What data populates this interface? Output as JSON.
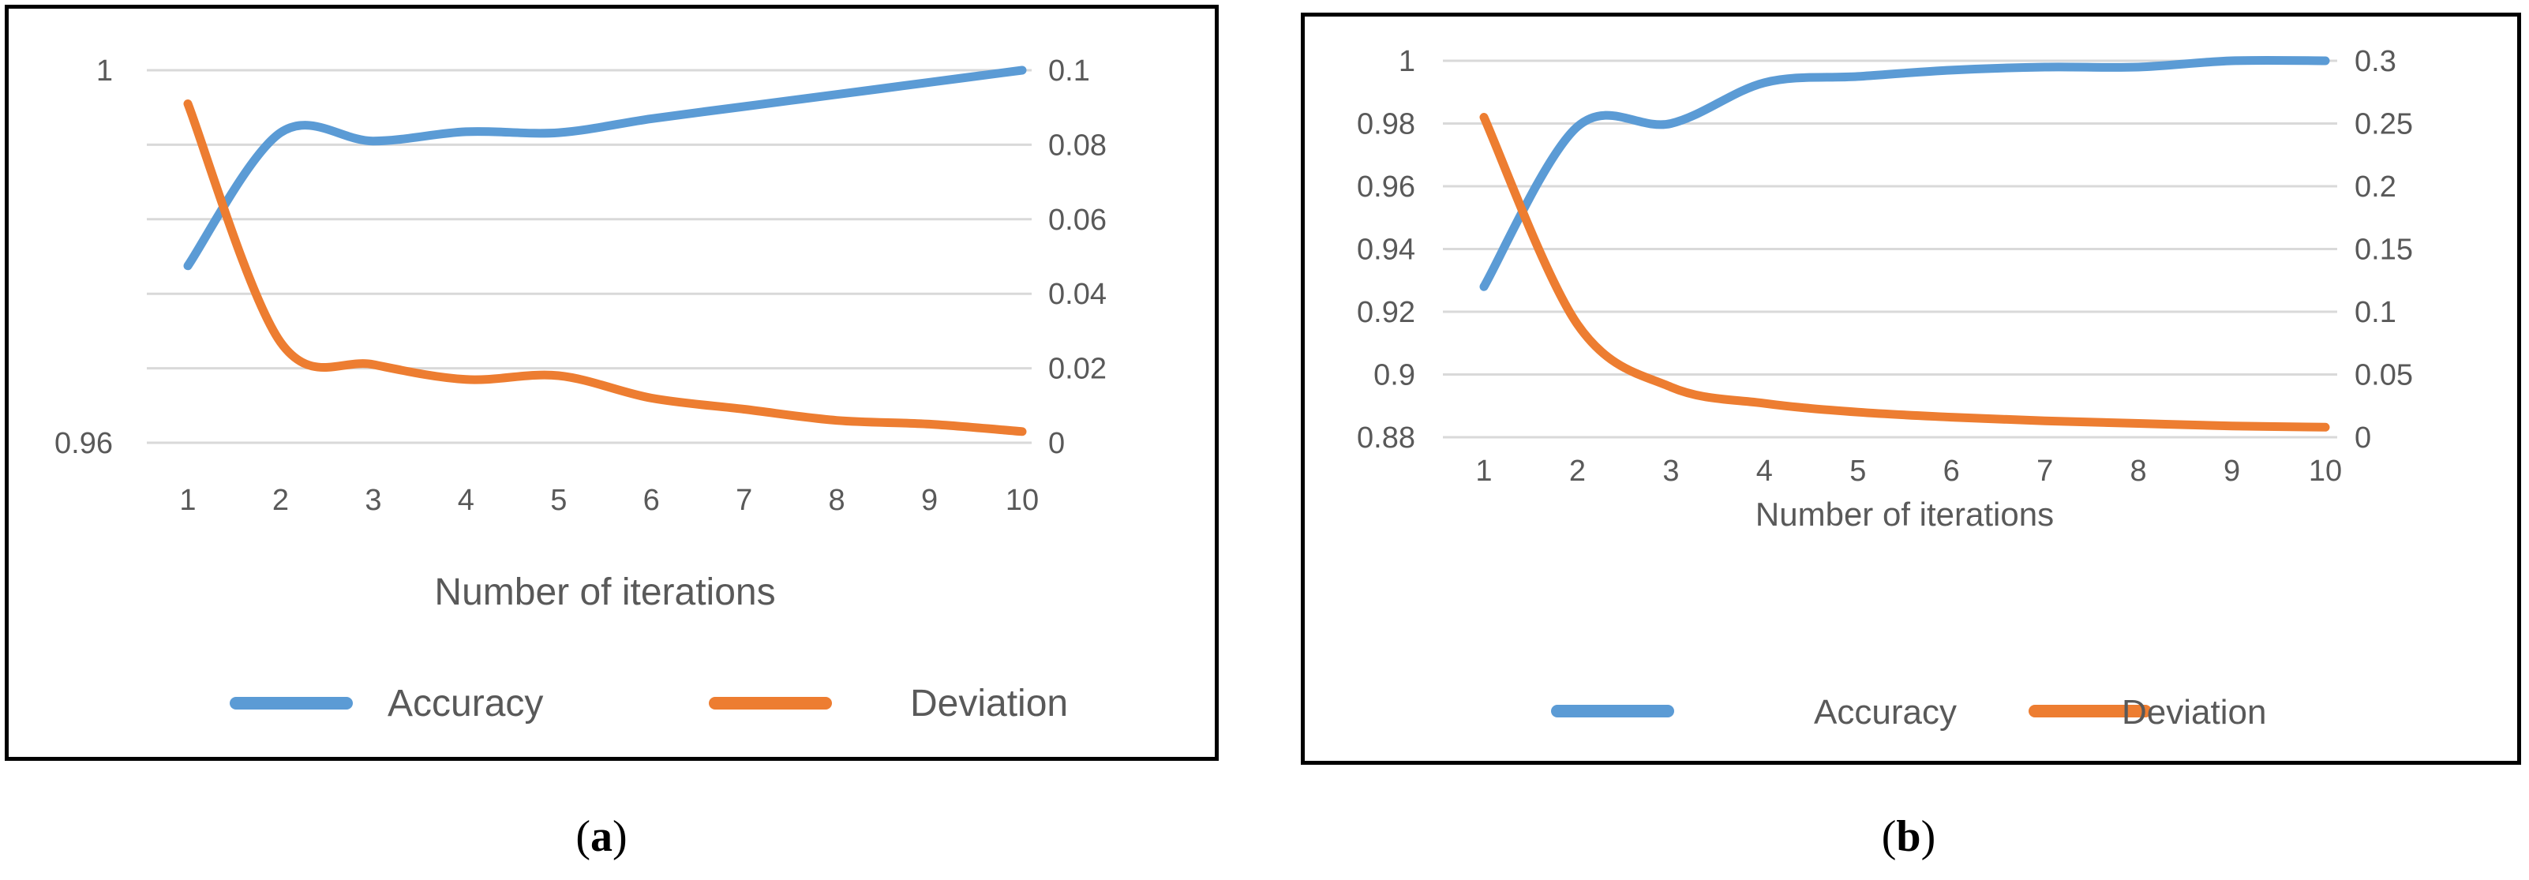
{
  "colors": {
    "accuracy": "#5B9BD5",
    "deviation": "#ED7D31",
    "grid": "#D9D9D9",
    "axis_text": "#595959"
  },
  "chart_data": [
    {
      "id": "a",
      "type": "line",
      "x": [
        1,
        2,
        3,
        4,
        5,
        6,
        7,
        8,
        9,
        10
      ],
      "xlabel": "Number of iterations",
      "y_left": {
        "lim": [
          0.96,
          1
        ],
        "tick_values": [
          0.96,
          0.968,
          0.976,
          0.984,
          0.992,
          1
        ],
        "tick_labels": [
          "0.96",
          "",
          "",
          "",
          "",
          "1"
        ]
      },
      "y_right": {
        "lim": [
          0,
          0.1
        ],
        "ticks": [
          0,
          0.02,
          0.04,
          0.06,
          0.08,
          0.1
        ],
        "tick_labels": [
          "0",
          "0.02",
          "0.04",
          "0.06",
          "0.08",
          "0.1"
        ]
      },
      "grid": true,
      "legend_position": "bottom",
      "series": [
        {
          "name": "Accuracy",
          "axis": "left",
          "values": [
            0.979,
            0.9933,
            0.9924,
            0.9934,
            0.9933,
            0.9948,
            0.9961,
            0.9974,
            0.9987,
            1.0
          ]
        },
        {
          "name": "Deviation",
          "axis": "right",
          "values": [
            0.091,
            0.027,
            0.021,
            0.017,
            0.018,
            0.012,
            0.009,
            0.006,
            0.005,
            0.003
          ]
        }
      ]
    },
    {
      "id": "b",
      "type": "line",
      "x": [
        1,
        2,
        3,
        4,
        5,
        6,
        7,
        8,
        9,
        10
      ],
      "xlabel": "Number of iterations",
      "y_left": {
        "lim": [
          0.88,
          1
        ],
        "tick_values": [
          0.88,
          0.9,
          0.92,
          0.94,
          0.96,
          0.98,
          1
        ],
        "tick_labels": [
          "0.88",
          "0.9",
          "0.92",
          "0.94",
          "0.96",
          "0.98",
          "1"
        ]
      },
      "y_right": {
        "lim": [
          0,
          0.3
        ],
        "ticks": [
          0,
          0.05,
          0.1,
          0.15,
          0.2,
          0.25,
          0.3
        ],
        "tick_labels": [
          "0",
          "0.05",
          "0.1",
          "0.15",
          "0.2",
          "0.25",
          "0.3"
        ]
      },
      "grid": true,
      "legend_position": "bottom",
      "series": [
        {
          "name": "Accuracy",
          "axis": "left",
          "values": [
            0.928,
            0.979,
            0.98,
            0.993,
            0.995,
            0.997,
            0.998,
            0.998,
            1.0,
            1.0
          ]
        },
        {
          "name": "Deviation",
          "axis": "right",
          "values": [
            0.255,
            0.09,
            0.04,
            0.027,
            0.02,
            0.016,
            0.013,
            0.011,
            0.009,
            0.008
          ]
        }
      ]
    }
  ],
  "captions": {
    "a": "a",
    "b": "b"
  }
}
